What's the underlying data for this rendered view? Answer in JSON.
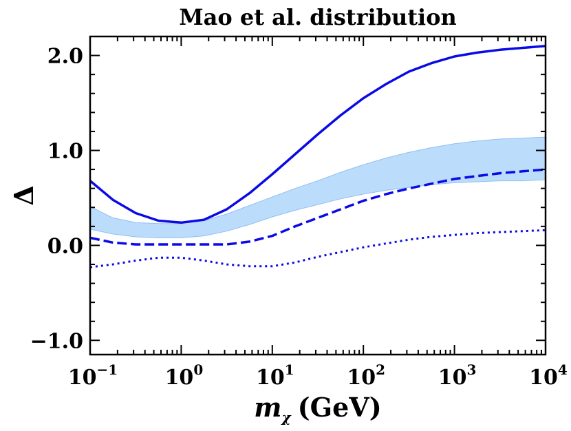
{
  "chart_data": {
    "type": "line",
    "title": "Mao et al. distribution",
    "xlabel": {
      "symbol": "m",
      "subscript": "χ",
      "unit": "(GeV)"
    },
    "ylabel": "Δ",
    "xscale": "log",
    "xlim_log10": [
      -1,
      4
    ],
    "ylim": [
      -1.15,
      2.2
    ],
    "x_ticks": [
      {
        "base": "10",
        "exp": "−1",
        "log10": -1
      },
      {
        "base": "10",
        "exp": "0",
        "log10": 0
      },
      {
        "base": "10",
        "exp": "1",
        "log10": 1
      },
      {
        "base": "10",
        "exp": "2",
        "log10": 2
      },
      {
        "base": "10",
        "exp": "3",
        "log10": 3
      },
      {
        "base": "10",
        "exp": "4",
        "log10": 4
      }
    ],
    "y_ticks": [
      {
        "label": "2.0",
        "value": 2.0
      },
      {
        "label": "1.0",
        "value": 1.0
      },
      {
        "label": "0.0",
        "value": 0.0
      },
      {
        "label": "−1.0",
        "value": -1.0
      }
    ],
    "log10_mx": [
      -1.0,
      -0.75,
      -0.5,
      -0.25,
      0.0,
      0.25,
      0.5,
      0.75,
      1.0,
      1.25,
      1.5,
      1.75,
      2.0,
      2.25,
      2.5,
      2.75,
      3.0,
      3.25,
      3.5,
      3.75,
      4.0
    ],
    "series": [
      {
        "name": "solid",
        "style": "solid",
        "values": [
          0.68,
          0.48,
          0.34,
          0.26,
          0.24,
          0.27,
          0.38,
          0.55,
          0.75,
          0.96,
          1.17,
          1.37,
          1.55,
          1.7,
          1.83,
          1.92,
          1.99,
          2.03,
          2.06,
          2.08,
          2.1
        ]
      },
      {
        "name": "dashed",
        "style": "dashed",
        "values": [
          0.08,
          0.03,
          0.01,
          0.01,
          0.01,
          0.01,
          0.01,
          0.04,
          0.1,
          0.2,
          0.29,
          0.38,
          0.47,
          0.54,
          0.6,
          0.65,
          0.7,
          0.73,
          0.76,
          0.78,
          0.8
        ]
      },
      {
        "name": "dotted",
        "style": "dotted",
        "values": [
          -0.23,
          -0.2,
          -0.16,
          -0.13,
          -0.13,
          -0.16,
          -0.2,
          -0.22,
          -0.22,
          -0.18,
          -0.12,
          -0.07,
          -0.02,
          0.02,
          0.06,
          0.09,
          0.11,
          0.13,
          0.14,
          0.15,
          0.16
        ]
      }
    ],
    "band": {
      "name": "shaded-band",
      "lower": [
        0.17,
        0.12,
        0.09,
        0.08,
        0.08,
        0.1,
        0.15,
        0.22,
        0.3,
        0.37,
        0.43,
        0.49,
        0.54,
        0.58,
        0.61,
        0.64,
        0.66,
        0.67,
        0.68,
        0.68,
        0.69
      ],
      "upper": [
        0.41,
        0.29,
        0.24,
        0.23,
        0.23,
        0.26,
        0.33,
        0.42,
        0.51,
        0.6,
        0.68,
        0.77,
        0.85,
        0.92,
        0.98,
        1.03,
        1.07,
        1.1,
        1.12,
        1.13,
        1.14
      ]
    },
    "colors": {
      "line": "#0a0ae6",
      "band_fill": "#bcdcfb",
      "band_edge": "#8ec0f2",
      "axis": "#000000"
    },
    "grid": false
  }
}
